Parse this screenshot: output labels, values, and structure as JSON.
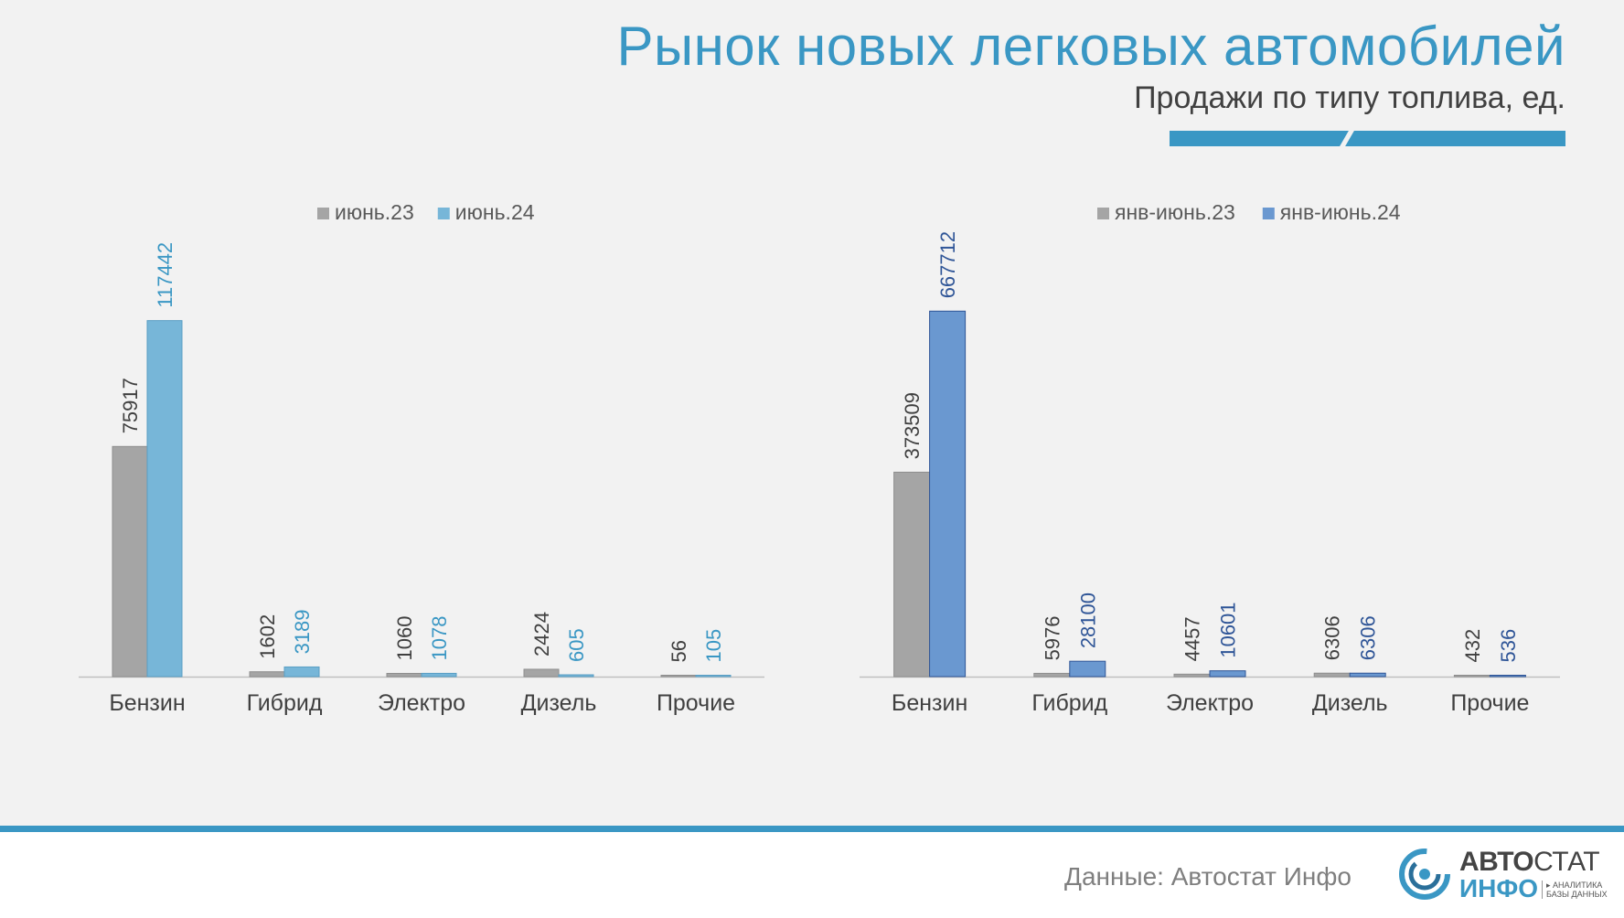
{
  "title": "Рынок новых легковых автомобилей",
  "subtitle": "Продажи по типу топлива, ед.",
  "source": "Данные: Автостат Инфо",
  "logo": {
    "word_bold": "АВТО",
    "word_thin": "СТАТ",
    "word_bottom": "ИНФО",
    "tagline_1": "▸ АНАЛИТИКА",
    "tagline_2": "БАЗЫ ДАННЫХ"
  },
  "colors": {
    "accent": "#3a97c4",
    "series_prev": "#a5a5a5",
    "series_june24": "#77b6d8",
    "series_ytd24": "#6a98d0",
    "label_prev": "#404040",
    "label_june24": "#3a97c4",
    "label_ytd24": "#2f5597"
  },
  "chart_data": [
    {
      "type": "bar",
      "categories": [
        "Бензин",
        "Гибрид",
        "Электро",
        "Дизель",
        "Прочие"
      ],
      "series": [
        {
          "name": "июнь.23",
          "values": [
            75917,
            1602,
            1060,
            2424,
            56
          ]
        },
        {
          "name": "июнь.24",
          "values": [
            117442,
            3189,
            1078,
            605,
            105
          ]
        }
      ],
      "value_labels": [
        [
          "75917",
          "1602",
          "1060",
          "2424",
          "56"
        ],
        [
          "117442",
          "3189",
          "1078",
          "605",
          "105"
        ]
      ],
      "ylim": [
        0,
        130000
      ],
      "grid": false,
      "legend": "top"
    },
    {
      "type": "bar",
      "categories": [
        "Бензин",
        "Гибрид",
        "Электро",
        "Дизель",
        "Прочие"
      ],
      "series": [
        {
          "name": "янв-июнь.23",
          "values": [
            373509,
            5976,
            4457,
            6306,
            432
          ]
        },
        {
          "name": "янв-июнь.24",
          "values": [
            667712,
            28100,
            10601,
            6306,
            536
          ]
        }
      ],
      "value_labels": [
        [
          "373509",
          "5976",
          "4457",
          "6306",
          "432"
        ],
        [
          "667712",
          "28100",
          "10601",
          "6306",
          "536"
        ]
      ],
      "ylim": [
        0,
        720000
      ],
      "grid": false,
      "legend": "top"
    }
  ]
}
